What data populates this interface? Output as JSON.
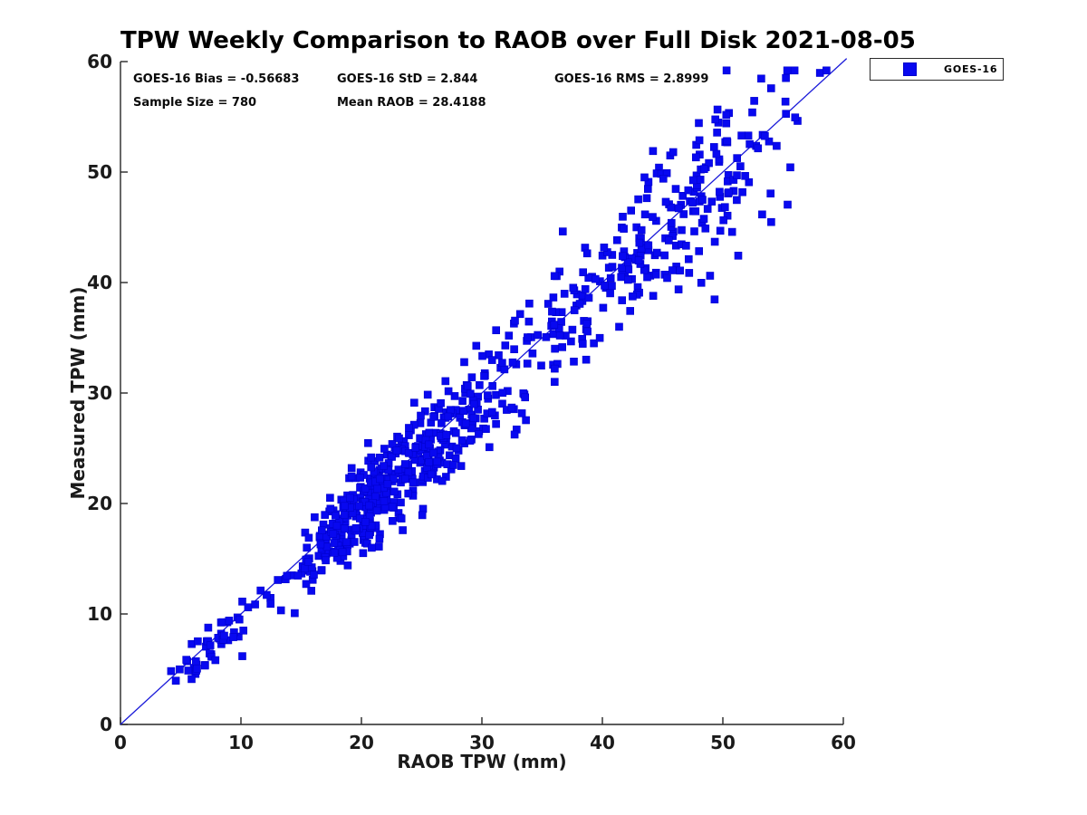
{
  "window": {
    "background": "#ffffff"
  },
  "chart_data": {
    "type": "scatter",
    "title": "TPW Weekly Comparison to RAOB over Full Disk 2021-08-05",
    "xlabel": "RAOB TPW (mm)",
    "ylabel": "Measured TPW (mm)",
    "xlim": [
      0,
      60
    ],
    "ylim": [
      0,
      60
    ],
    "xticks": [
      0,
      10,
      20,
      30,
      40,
      50,
      60
    ],
    "yticks": [
      0,
      10,
      20,
      30,
      40,
      50,
      60
    ],
    "grid": false,
    "box": false,
    "legend": {
      "position": "outside-top-right",
      "entries": [
        {
          "label": "GOES-16",
          "marker": "filled-square",
          "color": "#0808f0"
        }
      ]
    },
    "stats": {
      "bias": -0.56683,
      "std": 2.844,
      "rms": 2.8999,
      "sample_size": 780,
      "mean_raob": 28.4188
    },
    "reference_line": {
      "type": "identity",
      "x": [
        0,
        60
      ],
      "y": [
        0,
        60
      ]
    },
    "colors": {
      "marker": "#0808f0",
      "marker_edge": "#0000cc",
      "line": "#1a1ad9",
      "axis": "#262626",
      "tick_text": "#1a1a1a"
    },
    "series": [
      {
        "name": "GOES-16",
        "marker": "filled-square",
        "marker_px": 8,
        "n_points": 780,
        "generation": {
          "seed": 20210805,
          "n": 780,
          "x_mixture": [
            {
              "weight": 0.4,
              "mean": 20.5,
              "sd": 3.4
            },
            {
              "weight": 0.24,
              "mean": 26.5,
              "sd": 4.0
            },
            {
              "weight": 0.2,
              "mean": 40.0,
              "sd": 4.8
            },
            {
              "weight": 0.11,
              "mean": 49.5,
              "sd": 3.8
            },
            {
              "weight": 0.05,
              "mean": 7.5,
              "sd": 1.8
            }
          ],
          "x_range": [
            4.2,
            58.6
          ],
          "y_bias": -0.56683,
          "y_noise_base": 1.0,
          "y_noise_slope": 0.055,
          "y_range": [
            0.8,
            59.2
          ]
        }
      }
    ]
  },
  "annotations": {
    "bias": "GOES-16 Bias = -0.56683",
    "std": "GOES-16 StD = 2.844",
    "rms": "GOES-16 RMS = 2.8999",
    "sample_size": "Sample Size = 780",
    "mean_raob": "Mean RAOB = 28.4188"
  }
}
